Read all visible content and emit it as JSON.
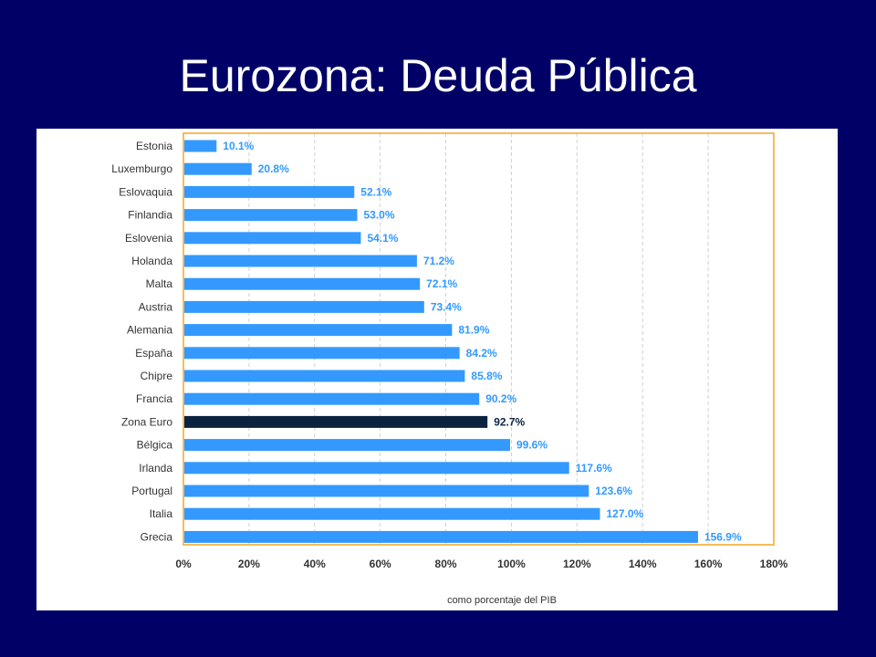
{
  "slide": {
    "title": "Eurozona: Deuda Pública"
  },
  "chart_data": {
    "type": "bar",
    "orientation": "horizontal",
    "categories": [
      "Estonia",
      "Luxemburgo",
      "Eslovaquia",
      "Finlandia",
      "Eslovenia",
      "Holanda",
      "Malta",
      "Austria",
      "Alemania",
      "España",
      "Chipre",
      "Francia",
      "Zona Euro",
      "Bélgica",
      "Irlanda",
      "Portugal",
      "Italia",
      "Grecia"
    ],
    "values": [
      10.1,
      20.8,
      52.1,
      53.0,
      54.1,
      71.2,
      72.1,
      73.4,
      81.9,
      84.2,
      85.8,
      90.2,
      92.7,
      99.6,
      117.6,
      123.6,
      127.0,
      156.9
    ],
    "value_labels": [
      "10.1%",
      "20.8%",
      "52.1%",
      "53.0%",
      "54.1%",
      "71.2%",
      "72.1%",
      "73.4%",
      "81.9%",
      "84.2%",
      "85.8%",
      "90.2%",
      "92.7%",
      "99.6%",
      "117.6%",
      "123.6%",
      "127.0%",
      "156.9%"
    ],
    "highlight_category": "Zona Euro",
    "xlim": [
      0,
      180
    ],
    "x_ticks": [
      0,
      20,
      40,
      60,
      80,
      100,
      120,
      140,
      160,
      180
    ],
    "x_tick_labels": [
      "0%",
      "20%",
      "40%",
      "60%",
      "80%",
      "100%",
      "120%",
      "140%",
      "160%",
      "180%"
    ],
    "xlabel": "como porcentaje del PIB",
    "grid": "vertical-dashed",
    "colors": {
      "bar": "#3399ff",
      "highlight_bar": "#0b2340",
      "frame": "#f5a623",
      "grid": "#d0d0d0"
    }
  }
}
